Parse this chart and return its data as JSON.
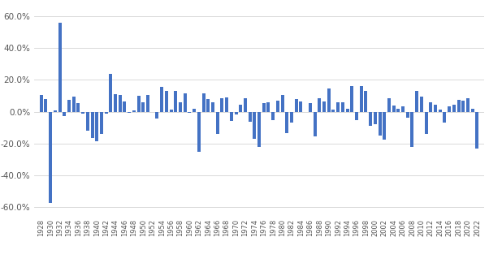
{
  "years": [
    1928,
    1929,
    1930,
    1931,
    1932,
    1933,
    1934,
    1935,
    1936,
    1937,
    1938,
    1939,
    1940,
    1941,
    1942,
    1943,
    1944,
    1945,
    1946,
    1947,
    1948,
    1949,
    1950,
    1951,
    1952,
    1953,
    1954,
    1955,
    1956,
    1957,
    1958,
    1959,
    1960,
    1961,
    1962,
    1963,
    1964,
    1965,
    1966,
    1967,
    1968,
    1969,
    1970,
    1971,
    1972,
    1973,
    1974,
    1975,
    1976,
    1977,
    1978,
    1979,
    1980,
    1981,
    1982,
    1983,
    1984,
    1985,
    1986,
    1987,
    1988,
    1989,
    1990,
    1991,
    1992,
    1993,
    1994,
    1995,
    1996,
    1997,
    1998,
    1999,
    2000,
    2001,
    2002,
    2003,
    2004,
    2005,
    2006,
    2007,
    2008,
    2009,
    2010,
    2011,
    2012,
    2013,
    2014,
    2015,
    2016,
    2017,
    2018,
    2019,
    2020,
    2021,
    2022
  ],
  "values": [
    0.103,
    0.082,
    -0.575,
    0.009,
    0.56,
    -0.026,
    0.077,
    0.093,
    0.057,
    -0.014,
    -0.118,
    -0.164,
    -0.185,
    -0.141,
    -0.013,
    0.239,
    0.112,
    0.108,
    0.063,
    -0.009,
    0.011,
    0.098,
    0.058,
    0.107,
    0.001,
    -0.042,
    0.155,
    0.13,
    0.012,
    0.129,
    0.059,
    0.115,
    -0.009,
    0.018,
    -0.252,
    0.115,
    0.081,
    0.058,
    -0.141,
    0.083,
    0.09,
    -0.057,
    -0.019,
    0.045,
    0.083,
    -0.063,
    -0.171,
    -0.223,
    0.052,
    0.061,
    -0.051,
    0.072,
    0.106,
    -0.136,
    -0.07,
    0.082,
    0.063,
    0.001,
    0.056,
    -0.152,
    0.087,
    0.067,
    0.147,
    0.015,
    0.061,
    0.058,
    0.018,
    0.162,
    -0.05,
    0.163,
    0.129,
    -0.088,
    -0.078,
    -0.151,
    -0.176,
    0.085,
    0.038,
    0.019,
    0.033,
    -0.035,
    -0.222,
    0.129,
    0.093,
    -0.138,
    0.062,
    0.046,
    0.012,
    -0.068,
    0.035,
    0.045,
    0.076,
    0.072,
    0.086,
    0.017,
    -0.229
  ],
  "bar_color": "#4472C4",
  "bg_color": "#FFFFFF",
  "grid_color": "#D3D3D3",
  "ylim": [
    -0.65,
    0.65
  ],
  "yticks": [
    -0.6,
    -0.4,
    -0.2,
    0.0,
    0.2,
    0.4,
    0.6
  ],
  "ytick_labels": [
    "-60.0%",
    "-40.0%",
    "-20.0%",
    "0.0%",
    "20.0%",
    "40.0%",
    "60.0%"
  ]
}
